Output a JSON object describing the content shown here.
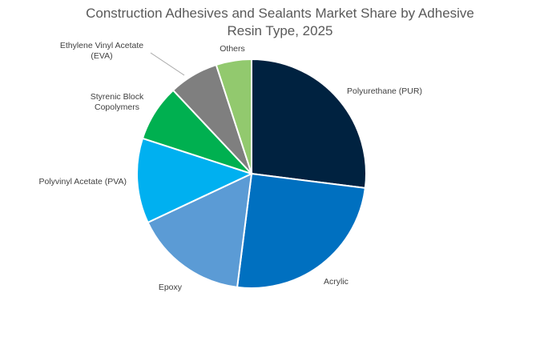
{
  "chart_data": {
    "type": "pie",
    "title_line1": "Construction Adhesives and Sealants Market Share by Adhesive",
    "title_line2": "Resin Type, 2025",
    "start_angle_deg": 0,
    "direction": "clockwise",
    "slices": [
      {
        "label": "Polyurethane (PUR)",
        "label_lines": [
          "Polyurethane (PUR)"
        ],
        "value": 27,
        "color": "#002240"
      },
      {
        "label": "Acrylic",
        "label_lines": [
          "Acrylic"
        ],
        "value": 25,
        "color": "#0070C0"
      },
      {
        "label": "Epoxy",
        "label_lines": [
          "Epoxy"
        ],
        "value": 16,
        "color": "#5B9BD5"
      },
      {
        "label": "Polyvinyl Acetate (PVA)",
        "label_lines": [
          "Polyvinyl Acetate (PVA)"
        ],
        "value": 12,
        "color": "#00B0F0"
      },
      {
        "label": "Styrenic Block Copolymers",
        "label_lines": [
          "Styrenic Block",
          "Copolymers"
        ],
        "value": 8,
        "color": "#00B050"
      },
      {
        "label": "Ethylene Vinyl Acetate (EVA)",
        "label_lines": [
          "Ethylene Vinyl Acetate",
          "(EVA)"
        ],
        "value": 7,
        "color": "#7F7F7F"
      },
      {
        "label": "Others",
        "label_lines": [
          "Others"
        ],
        "value": 5,
        "color": "#92C96E"
      }
    ],
    "legend": "none"
  }
}
